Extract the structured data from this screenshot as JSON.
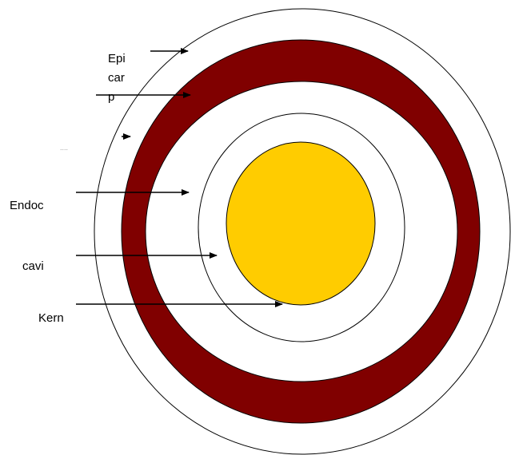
{
  "labels": {
    "epicarp": [
      "Epi",
      "car",
      "p"
    ],
    "mesocarp": "....",
    "endocarp": "Endoc",
    "cavity": "cavi",
    "kernel": "Kern"
  }
}
